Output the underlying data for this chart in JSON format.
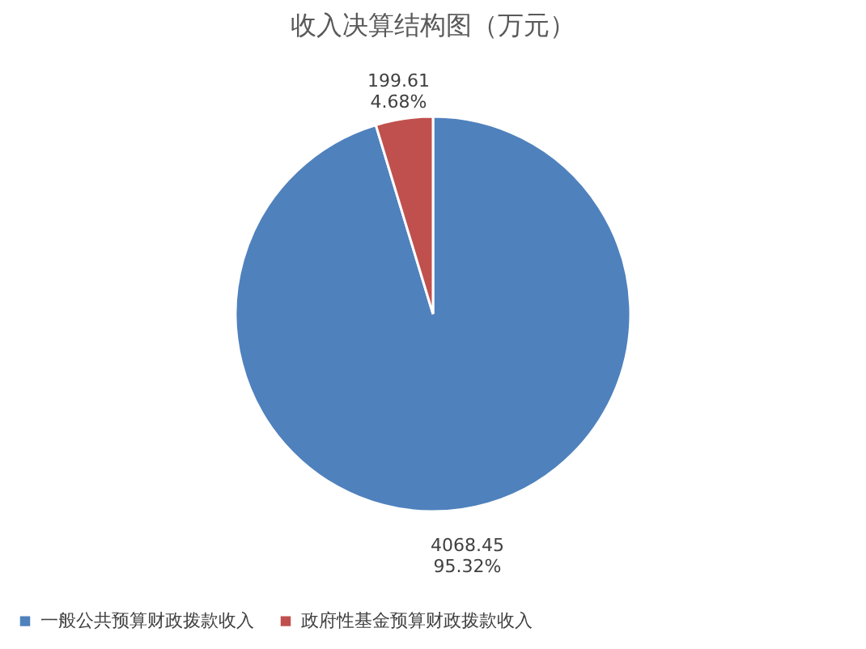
{
  "chart_data": {
    "type": "pie",
    "title": "收入决算结构图（万元）",
    "categories": [
      "一般公共预算财政拨款收入",
      "政府性基金预算财政拨款收入"
    ],
    "values": [
      4068.45,
      199.61
    ],
    "colors": [
      "#4f81bd",
      "#c0504d"
    ],
    "value_labels": [
      "4068.45\n95.32%",
      "199.61\n4.68%"
    ],
    "legend": "bottom"
  }
}
